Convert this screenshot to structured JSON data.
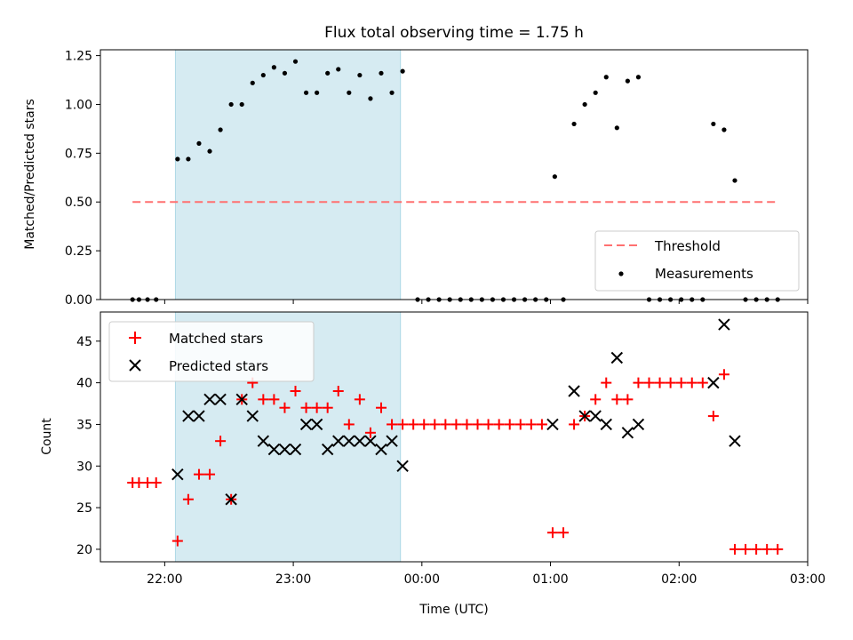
{
  "chart_data": [
    {
      "type": "scatter",
      "title": "Flux total observing time = 1.75 h",
      "xlabel": "",
      "ylabel": "Matched/Predicted stars",
      "xlim": [
        "21:30",
        "03:00"
      ],
      "ylim": [
        0,
        1.28
      ],
      "x_ticks": [
        "22:00",
        "23:00",
        "00:00",
        "01:00",
        "02:00",
        "03:00"
      ],
      "y_ticks": [
        "0.00",
        "0.25",
        "0.50",
        "0.75",
        "1.00",
        "1.25"
      ],
      "grid": false,
      "legend_position": "lower right",
      "legend": [
        "Threshold",
        "Measurements"
      ],
      "shaded_interval": [
        "22:05",
        "23:50"
      ],
      "shaded_color": "#add8e6",
      "threshold": {
        "name": "Threshold",
        "value": 0.5,
        "x_range": [
          "21:45",
          "02:45"
        ],
        "color": "#ff6b6b"
      },
      "series": [
        {
          "name": "Measurements",
          "color": "#000000",
          "x": [
            "21:45",
            "21:48",
            "21:52",
            "21:56",
            "22:06",
            "22:11",
            "22:16",
            "22:21",
            "22:26",
            "22:31",
            "22:36",
            "22:41",
            "22:46",
            "22:51",
            "22:56",
            "23:01",
            "23:06",
            "23:11",
            "23:16",
            "23:21",
            "23:26",
            "23:31",
            "23:36",
            "23:41",
            "23:46",
            "23:51",
            "23:58",
            "00:03",
            "00:08",
            "00:13",
            "00:18",
            "00:23",
            "00:28",
            "00:33",
            "00:38",
            "00:43",
            "00:48",
            "00:53",
            "00:58",
            "01:02",
            "01:06",
            "01:11",
            "01:16",
            "01:21",
            "01:26",
            "01:31",
            "01:36",
            "01:41",
            "01:46",
            "01:51",
            "01:56",
            "02:01",
            "02:06",
            "02:11",
            "02:16",
            "02:21",
            "02:26",
            "02:31",
            "02:36",
            "02:41",
            "02:46"
          ],
          "y": [
            0,
            0,
            0,
            0,
            0.72,
            0.72,
            0.8,
            0.76,
            0.87,
            1.0,
            1.0,
            1.11,
            1.15,
            1.19,
            1.16,
            1.22,
            1.06,
            1.06,
            1.16,
            1.18,
            1.06,
            1.15,
            1.03,
            1.16,
            1.06,
            1.17,
            0,
            0,
            0,
            0,
            0,
            0,
            0,
            0,
            0,
            0,
            0,
            0,
            0,
            0.63,
            0,
            0.9,
            1.0,
            1.06,
            1.14,
            0.88,
            1.12,
            1.14,
            0,
            0,
            0,
            0,
            0,
            0,
            0.9,
            0.87,
            0.61,
            0,
            0,
            0,
            0
          ]
        }
      ]
    },
    {
      "type": "scatter",
      "title": "",
      "xlabel": "Time (UTC)",
      "ylabel": "Count",
      "xlim": [
        "21:30",
        "03:00"
      ],
      "ylim": [
        18.5,
        48.5
      ],
      "x_ticks": [
        "22:00",
        "23:00",
        "00:00",
        "01:00",
        "02:00",
        "03:00"
      ],
      "y_ticks": [
        "20",
        "25",
        "30",
        "35",
        "40",
        "45"
      ],
      "grid": false,
      "legend_position": "upper left",
      "legend": [
        "Matched stars",
        "Predicted stars"
      ],
      "shaded_interval": [
        "22:05",
        "23:50"
      ],
      "shaded_color": "#add8e6",
      "series": [
        {
          "name": "Matched stars",
          "marker": "plus",
          "color": "#ff0000",
          "x": [
            "21:45",
            "21:48",
            "21:52",
            "21:56",
            "22:06",
            "22:11",
            "22:16",
            "22:21",
            "22:26",
            "22:31",
            "22:36",
            "22:41",
            "22:46",
            "22:51",
            "22:56",
            "23:01",
            "23:06",
            "23:11",
            "23:16",
            "23:21",
            "23:26",
            "23:31",
            "23:36",
            "23:41",
            "23:46",
            "23:51",
            "23:56",
            "24:01",
            "24:06",
            "24:11",
            "24:16",
            "24:21",
            "24:26",
            "24:31",
            "24:36",
            "24:41",
            "24:46",
            "24:51",
            "24:56",
            "25:01",
            "25:06",
            "25:11",
            "25:16",
            "25:21",
            "25:26",
            "25:31",
            "25:36",
            "25:41",
            "25:46",
            "25:51",
            "25:56",
            "26:01",
            "26:06",
            "26:11",
            "26:16",
            "26:21",
            "26:26",
            "26:31",
            "26:36",
            "26:41",
            "26:46"
          ],
          "y": [
            28,
            28,
            28,
            28,
            21,
            26,
            29,
            29,
            33,
            26,
            38,
            40,
            38,
            38,
            37,
            39,
            37,
            37,
            37,
            39,
            35,
            38,
            34,
            37,
            35,
            35,
            35,
            35,
            35,
            35,
            35,
            35,
            35,
            35,
            35,
            35,
            35,
            35,
            35,
            22,
            22,
            35,
            36,
            38,
            40,
            38,
            38,
            40,
            40,
            40,
            40,
            40,
            40,
            40,
            36,
            41,
            20,
            20,
            20,
            20,
            20
          ]
        },
        {
          "name": "Predicted stars",
          "marker": "x",
          "color": "#000000",
          "x": [
            "22:06",
            "22:11",
            "22:16",
            "22:21",
            "22:26",
            "22:31",
            "22:36",
            "22:41",
            "22:46",
            "22:51",
            "22:56",
            "23:01",
            "23:06",
            "23:11",
            "23:16",
            "23:21",
            "23:26",
            "23:31",
            "23:36",
            "23:41",
            "23:46",
            "23:51",
            "25:01",
            "25:11",
            "25:16",
            "25:21",
            "25:26",
            "25:31",
            "25:36",
            "25:41",
            "26:16",
            "26:21",
            "26:26"
          ],
          "y": [
            29,
            36,
            36,
            38,
            38,
            26,
            38,
            36,
            33,
            32,
            32,
            32,
            35,
            35,
            32,
            33,
            33,
            33,
            33,
            32,
            33,
            30,
            35,
            39,
            36,
            36,
            35,
            43,
            34,
            35,
            40,
            47,
            33
          ]
        }
      ]
    }
  ]
}
